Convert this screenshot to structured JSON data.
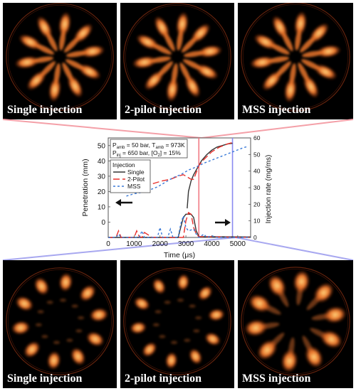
{
  "top_row": [
    {
      "label": "Single injection",
      "pattern": "single"
    },
    {
      "label": "2-pilot injection",
      "pattern": "single"
    },
    {
      "label": "MSS injection",
      "pattern": "single"
    }
  ],
  "bottom_row": [
    {
      "label": "Single injection",
      "pattern": "sparse"
    },
    {
      "label": "2-pilot injection",
      "pattern": "sparse2"
    },
    {
      "label": "MSS injection",
      "pattern": "mss"
    }
  ],
  "colors": {
    "flame_core": "#ffd27a",
    "flame_mid": "#e8742a",
    "flame_edge": "#6b1e08",
    "top_connector": "#f4a0a8",
    "bottom_connector": "#a8a8f0",
    "marker_red": "#f07a84",
    "marker_blue": "#8a8af0"
  },
  "chart_data": {
    "type": "line",
    "conditions": {
      "line1_a": "P",
      "line1_a_sub": "amb",
      "line1_b": " = 50 bar, T",
      "line1_b_sub": "amb",
      "line1_c": " = 973K",
      "line2_a": "P",
      "line2_a_sub": "inj",
      "line2_b": " = 650 bar, [O",
      "line2_b_sub": "2",
      "line2_c": "] = 15%"
    },
    "legend_title": "Injection",
    "xlabel": "Time (μs)",
    "ylabel_left": "Penetration (mm)",
    "ylabel_right": "Injection rate (mg/ms)",
    "xlim": [
      0,
      5500
    ],
    "ylim_left": [
      -10,
      55
    ],
    "ylim_right": [
      0,
      60
    ],
    "xticks": [
      0,
      1000,
      2000,
      3000,
      4000,
      5000
    ],
    "yticks_left": [
      0,
      10,
      20,
      30,
      40,
      50
    ],
    "yticks_right": [
      0,
      10,
      20,
      30,
      40,
      50,
      60
    ],
    "markers": [
      {
        "x": 3500,
        "color": "#f07a84"
      },
      {
        "x": 4800,
        "color": "#8a8af0"
      }
    ],
    "series": [
      {
        "name": "Single",
        "color": "#333333",
        "dash": "",
        "axis": "left",
        "x": [
          3050,
          3100,
          3200,
          3300,
          3400,
          3500,
          3600,
          3800,
          4000,
          4200,
          4400,
          4600,
          4800
        ],
        "y": [
          9,
          20,
          27,
          31,
          34,
          37,
          40,
          44,
          47,
          49,
          50,
          51,
          51.5
        ]
      },
      {
        "name": "2-Pilot",
        "color": "#e8302c",
        "dash": "9,4",
        "axis": "left",
        "x": [
          700,
          1000,
          1200,
          1500,
          1800,
          2100,
          2400,
          2700,
          2900,
          3000,
          3100,
          3200,
          3300,
          3500,
          3700,
          4000,
          4300,
          4600,
          4800
        ],
        "y": [
          20,
          22,
          23,
          24,
          25.5,
          27,
          28,
          30,
          31,
          30,
          29,
          28,
          28,
          37,
          41,
          46,
          49,
          51,
          52
        ]
      },
      {
        "name": "MSS",
        "color": "#3a7ad8",
        "dash": "3,3",
        "axis": "left",
        "x": [
          700,
          1000,
          1300,
          1600,
          1900,
          2200,
          2500,
          2800,
          3100,
          3400,
          3700,
          4000,
          4300,
          4600,
          4900,
          5200,
          5400
        ],
        "y": [
          17,
          18.5,
          19.5,
          21,
          23,
          26,
          29,
          31,
          34,
          36,
          38.5,
          40.5,
          42.5,
          44.5,
          46.5,
          48.5,
          49.5
        ]
      },
      {
        "name": "",
        "color": "#333333",
        "dash": "",
        "axis": "right",
        "x": [
          0,
          2700,
          2800,
          2900,
          3000,
          3100,
          3200,
          3300,
          3400,
          3500,
          5500
        ],
        "y": [
          0,
          0,
          6,
          12,
          14,
          14,
          14,
          12,
          4,
          0.5,
          0.3
        ]
      },
      {
        "name": "",
        "color": "#e8302c",
        "dash": "9,4",
        "axis": "right",
        "x": [
          0,
          300,
          400,
          500,
          700,
          1000,
          1100,
          1200,
          1300,
          1400,
          1700,
          2900,
          3000,
          3100,
          3200,
          3300,
          3400,
          3500,
          5500
        ],
        "y": [
          0,
          0,
          4,
          0,
          0,
          0,
          4,
          0.5,
          0,
          3,
          0,
          0,
          10,
          15,
          14,
          6,
          2,
          0.5,
          0
        ]
      },
      {
        "name": "",
        "color": "#3a7ad8",
        "dash": "3,3",
        "axis": "right",
        "x": [
          0,
          300,
          400,
          500,
          1200,
          1300,
          1400,
          1900,
          2000,
          2100,
          2300,
          2400,
          2500,
          2700,
          2800,
          2900,
          3000,
          3100,
          3300,
          3400,
          3500,
          3700,
          3800,
          4000,
          4200,
          5500
        ],
        "y": [
          0,
          0,
          2,
          0,
          0,
          4,
          0,
          0,
          6,
          0,
          0,
          5,
          0,
          0,
          8,
          13,
          6,
          4,
          5,
          2,
          0,
          2,
          0,
          1,
          0,
          0
        ]
      }
    ]
  }
}
